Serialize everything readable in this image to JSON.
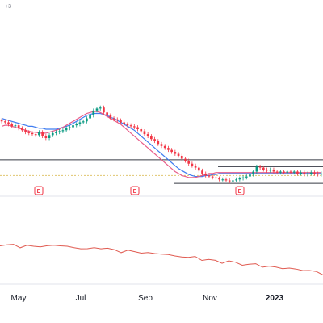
{
  "chart_data": {
    "type": "candlestick",
    "corner_label": "+3",
    "x_axis_labels": [
      "May",
      "Jul",
      "Sep",
      "Nov",
      "2023"
    ],
    "earnings_markers": [
      {
        "label": "E",
        "date": "Jun"
      },
      {
        "label": "E",
        "date": "Aug"
      },
      {
        "label": "E",
        "date": "Nov"
      }
    ],
    "horizontal_levels": [
      {
        "name": "upper-resistance",
        "value": 0.72
      },
      {
        "name": "lower-support",
        "value": 0.96
      }
    ],
    "price_series": [
      0.33,
      0.34,
      0.36,
      0.38,
      0.37,
      0.4,
      0.42,
      0.44,
      0.45,
      0.46,
      0.47,
      0.44,
      0.48,
      0.5,
      0.47,
      0.45,
      0.44,
      0.43,
      0.42,
      0.4,
      0.39,
      0.37,
      0.36,
      0.34,
      0.33,
      0.3,
      0.27,
      0.22,
      0.2,
      0.19,
      0.24,
      0.27,
      0.3,
      0.31,
      0.32,
      0.34,
      0.36,
      0.37,
      0.38,
      0.39,
      0.41,
      0.43,
      0.46,
      0.48,
      0.51,
      0.53,
      0.56,
      0.58,
      0.6,
      0.62,
      0.64,
      0.66,
      0.68,
      0.71,
      0.73,
      0.76,
      0.78,
      0.8,
      0.83,
      0.86,
      0.88,
      0.89,
      0.9,
      0.91,
      0.92,
      0.92,
      0.93,
      0.94,
      0.93,
      0.92,
      0.91,
      0.9,
      0.89,
      0.87,
      0.84,
      0.79,
      0.8,
      0.82,
      0.83,
      0.82,
      0.84,
      0.85,
      0.84,
      0.85,
      0.84,
      0.85,
      0.84,
      0.86,
      0.85,
      0.87,
      0.86,
      0.85,
      0.86,
      0.87,
      0.86
    ],
    "ma_fast": [
      0.38,
      0.37,
      0.37,
      0.38,
      0.39,
      0.4,
      0.41,
      0.42,
      0.43,
      0.44,
      0.44,
      0.45,
      0.45,
      0.45,
      0.44,
      0.43,
      0.42,
      0.41,
      0.39,
      0.37,
      0.35,
      0.33,
      0.31,
      0.29,
      0.27,
      0.25,
      0.24,
      0.23,
      0.23,
      0.24,
      0.26,
      0.28,
      0.3,
      0.32,
      0.34,
      0.36,
      0.39,
      0.42,
      0.45,
      0.48,
      0.51,
      0.54,
      0.57,
      0.6,
      0.63,
      0.66,
      0.69,
      0.72,
      0.75,
      0.78,
      0.81,
      0.84,
      0.86,
      0.88,
      0.89,
      0.9,
      0.9,
      0.9,
      0.89,
      0.88,
      0.87,
      0.86,
      0.86,
      0.85,
      0.85,
      0.85,
      0.85,
      0.85,
      0.85,
      0.85,
      0.85,
      0.85,
      0.85,
      0.85,
      0.85,
      0.85,
      0.85,
      0.85,
      0.85,
      0.85,
      0.85,
      0.85,
      0.85,
      0.85,
      0.85,
      0.85,
      0.85,
      0.85,
      0.85,
      0.85,
      0.85,
      0.85,
      0.85,
      0.85,
      0.85
    ],
    "ma_slow": [
      0.3,
      0.31,
      0.32,
      0.33,
      0.34,
      0.35,
      0.36,
      0.37,
      0.38,
      0.38,
      0.39,
      0.4,
      0.4,
      0.41,
      0.41,
      0.41,
      0.41,
      0.4,
      0.39,
      0.38,
      0.37,
      0.35,
      0.33,
      0.31,
      0.29,
      0.27,
      0.26,
      0.25,
      0.25,
      0.25,
      0.26,
      0.27,
      0.29,
      0.3,
      0.32,
      0.34,
      0.36,
      0.38,
      0.4,
      0.42,
      0.45,
      0.48,
      0.51,
      0.54,
      0.57,
      0.6,
      0.63,
      0.66,
      0.69,
      0.72,
      0.75,
      0.78,
      0.81,
      0.83,
      0.85,
      0.87,
      0.88,
      0.89,
      0.89,
      0.89,
      0.88,
      0.88,
      0.87,
      0.87,
      0.86,
      0.86,
      0.86,
      0.86,
      0.86,
      0.86,
      0.86,
      0.86,
      0.86,
      0.86,
      0.86,
      0.86,
      0.86,
      0.86,
      0.86,
      0.86,
      0.86,
      0.86,
      0.86,
      0.86,
      0.86,
      0.86,
      0.86,
      0.86,
      0.86,
      0.86,
      0.86,
      0.86,
      0.86,
      0.86,
      0.86
    ],
    "lower_line": [
      0.3,
      0.32,
      0.31,
      0.34,
      0.33,
      0.35,
      0.32,
      0.34,
      0.33,
      0.3,
      0.35,
      0.38,
      0.36,
      0.4,
      0.38,
      0.36,
      0.39,
      0.42,
      0.44,
      0.43,
      0.46,
      0.45,
      0.48,
      0.5,
      0.47,
      0.52,
      0.55,
      0.53,
      0.58,
      0.56,
      0.6,
      0.62,
      0.64,
      0.66,
      0.65,
      0.68,
      0.7,
      0.72,
      0.71,
      0.74,
      0.76,
      0.78,
      0.77,
      0.8,
      0.82,
      0.81,
      0.85,
      0.87,
      0.9
    ],
    "colors": {
      "up": "#089981",
      "down": "#f23645",
      "ma_fast": "#e85d8a",
      "ma_slow": "#3f7cf0",
      "lower_line": "#e05a50",
      "level_line": "#363a45",
      "dotted_level": "#e0c56e",
      "axis_text": "#131722",
      "earnings": "#f23645"
    }
  }
}
